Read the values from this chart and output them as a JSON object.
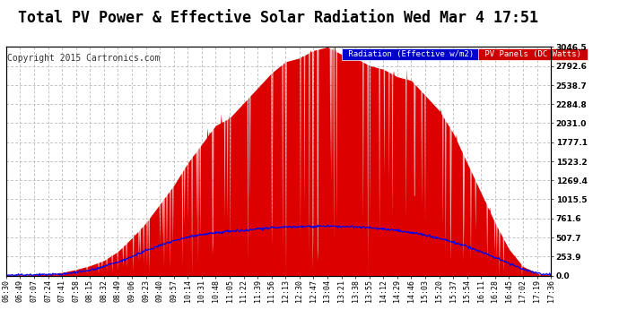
{
  "title": "Total PV Power & Effective Solar Radiation Wed Mar 4 17:51",
  "copyright": "Copyright 2015 Cartronics.com",
  "bg_color": "#ffffff",
  "plot_bg_color": "#ffffff",
  "grid_color": "#aaaaaa",
  "title_color": "#000000",
  "legend_labels": [
    "Radiation (Effective w/m2)",
    "PV Panels (DC Watts)"
  ],
  "legend_bg_colors": [
    "#0000cc",
    "#cc0000"
  ],
  "yticks": [
    0.0,
    253.9,
    507.7,
    761.6,
    1015.5,
    1269.4,
    1523.2,
    1777.1,
    2031.0,
    2284.8,
    2538.7,
    2792.6,
    3046.5
  ],
  "ymax": 3046.5,
  "xtick_labels": [
    "06:30",
    "06:49",
    "07:07",
    "07:24",
    "07:41",
    "07:58",
    "08:15",
    "08:32",
    "08:49",
    "09:06",
    "09:23",
    "09:40",
    "09:57",
    "10:14",
    "10:31",
    "10:48",
    "11:05",
    "11:22",
    "11:39",
    "11:56",
    "12:13",
    "12:30",
    "12:47",
    "13:04",
    "13:21",
    "13:38",
    "13:55",
    "14:12",
    "14:29",
    "14:46",
    "15:03",
    "15:20",
    "15:37",
    "15:54",
    "16:11",
    "16:28",
    "16:45",
    "17:02",
    "17:19",
    "17:36"
  ],
  "pv_data": [
    5,
    8,
    10,
    15,
    40,
    80,
    130,
    200,
    320,
    500,
    700,
    950,
    1200,
    1500,
    1750,
    2000,
    2100,
    2300,
    2500,
    2700,
    2850,
    2900,
    3000,
    3046,
    2950,
    2900,
    2800,
    2750,
    2650,
    2600,
    2400,
    2200,
    1900,
    1500,
    1100,
    700,
    350,
    120,
    30,
    5
  ],
  "rad_data": [
    2,
    5,
    8,
    12,
    20,
    40,
    70,
    120,
    180,
    250,
    330,
    400,
    460,
    510,
    545,
    570,
    590,
    605,
    620,
    635,
    645,
    650,
    655,
    658,
    655,
    648,
    638,
    622,
    600,
    572,
    538,
    495,
    445,
    385,
    315,
    240,
    160,
    85,
    35,
    8
  ],
  "pv_color": "#dd0000",
  "rad_color": "#0000ee",
  "tick_color": "#000000",
  "tick_fontsize": 6.0,
  "title_fontsize": 12,
  "copyright_fontsize": 7,
  "spine_color": "#000000"
}
